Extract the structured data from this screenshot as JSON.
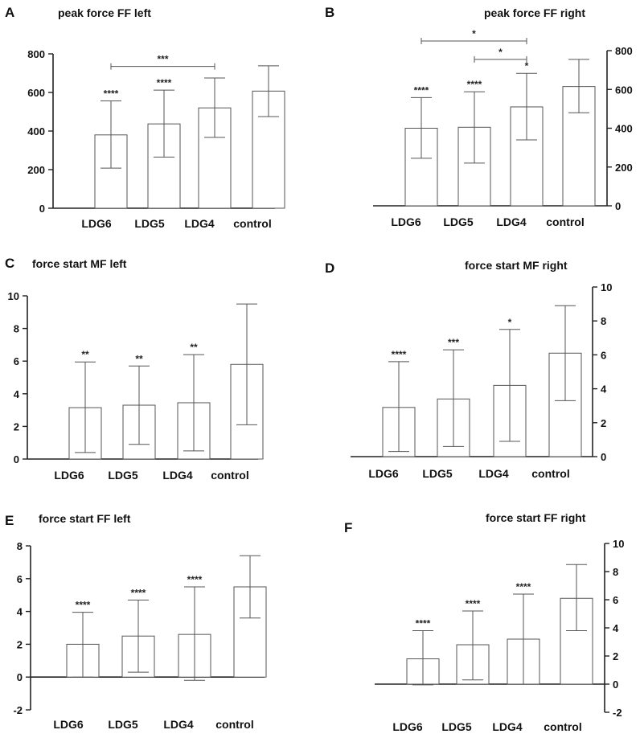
{
  "colors": {
    "bar_fill": "#ffffff",
    "bar_stroke": "#555555",
    "axis": "#222222",
    "text": "#111111"
  },
  "chart_data": [
    {
      "panel": "A",
      "title": "peak force FF left",
      "type": "bar",
      "categories": [
        "LDG6",
        "LDG5",
        "LDG4",
        "control"
      ],
      "values": [
        380,
        437,
        520,
        607
      ],
      "error_low": [
        208,
        265,
        367,
        475
      ],
      "error_high": [
        556,
        612,
        675,
        738
      ],
      "significance": [
        "****",
        "****",
        "",
        ""
      ],
      "ylim": [
        0,
        800
      ],
      "yticks": [
        0,
        200,
        400,
        600,
        800
      ],
      "yaxis": "left",
      "comparisons": [
        {
          "from": 0,
          "to": 2,
          "label": "***",
          "y": 735
        }
      ]
    },
    {
      "panel": "B",
      "title": "peak force FF right",
      "type": "bar",
      "categories": [
        "LDG6",
        "LDG5",
        "LDG4",
        "control"
      ],
      "values": [
        400,
        405,
        510,
        615
      ],
      "error_low": [
        245,
        220,
        340,
        480
      ],
      "error_high": [
        558,
        588,
        683,
        755
      ],
      "significance": [
        "****",
        "****",
        "*",
        ""
      ],
      "ylim": [
        0,
        800
      ],
      "yticks": [
        0,
        200,
        400,
        600,
        800
      ],
      "yaxis": "right",
      "comparisons": [
        {
          "from": 0,
          "to": 2,
          "label": "*",
          "y": 850
        },
        {
          "from": 1,
          "to": 2,
          "label": "*",
          "y": 755
        }
      ]
    },
    {
      "panel": "C",
      "title": "force start MF left",
      "type": "bar",
      "categories": [
        "LDG6",
        "LDG5",
        "LDG4",
        "control"
      ],
      "values": [
        3.15,
        3.3,
        3.45,
        5.8
      ],
      "error_low": [
        0.4,
        0.9,
        0.5,
        2.1
      ],
      "error_high": [
        5.95,
        5.7,
        6.4,
        9.5
      ],
      "significance": [
        "**",
        "**",
        "**",
        ""
      ],
      "ylim": [
        0,
        10
      ],
      "yticks": [
        0,
        2,
        4,
        6,
        8,
        10
      ],
      "yaxis": "left",
      "comparisons": []
    },
    {
      "panel": "D",
      "title": "force start MF right",
      "type": "bar",
      "categories": [
        "LDG6",
        "LDG5",
        "LDG4",
        "control"
      ],
      "values": [
        2.9,
        3.4,
        4.2,
        6.1
      ],
      "error_low": [
        0.3,
        0.6,
        0.9,
        3.3
      ],
      "error_high": [
        5.6,
        6.3,
        7.5,
        8.9
      ],
      "significance": [
        "****",
        "***",
        "*",
        ""
      ],
      "ylim": [
        0,
        10
      ],
      "yticks": [
        0,
        2,
        4,
        6,
        8,
        10
      ],
      "yaxis": "right",
      "comparisons": []
    },
    {
      "panel": "E",
      "title": "force start FF left",
      "type": "bar",
      "categories": [
        "LDG6",
        "LDG5",
        "LDG4",
        "control"
      ],
      "values": [
        2.0,
        2.5,
        2.6,
        5.5
      ],
      "error_low": [
        0.0,
        0.3,
        -0.2,
        3.6
      ],
      "error_high": [
        3.95,
        4.7,
        5.5,
        7.4
      ],
      "significance": [
        "****",
        "****",
        "****",
        ""
      ],
      "ylim": [
        -2,
        8
      ],
      "yticks": [
        -2,
        0,
        2,
        4,
        6,
        8
      ],
      "yaxis": "left",
      "comparisons": []
    },
    {
      "panel": "F",
      "title": "force start FF right",
      "type": "bar",
      "categories": [
        "LDG6",
        "LDG5",
        "LDG4",
        "control"
      ],
      "values": [
        1.8,
        2.8,
        3.2,
        6.1
      ],
      "error_low": [
        -0.05,
        0.3,
        0.0,
        3.8
      ],
      "error_high": [
        3.8,
        5.2,
        6.4,
        8.5
      ],
      "significance": [
        "****",
        "****",
        "****",
        ""
      ],
      "ylim": [
        -2,
        10
      ],
      "yticks": [
        -2,
        0,
        2,
        4,
        6,
        8,
        10
      ],
      "yaxis": "right",
      "comparisons": []
    }
  ]
}
